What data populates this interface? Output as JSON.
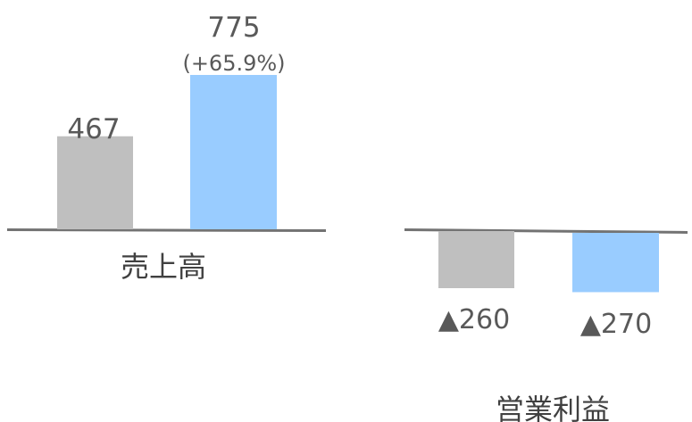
{
  "chart_data": [
    {
      "type": "bar",
      "category": "売上高",
      "series_colors": [
        "#bfbfbf",
        "#99ccff"
      ],
      "values": [
        467,
        775
      ],
      "value_labels": [
        "467",
        "775"
      ],
      "change_label": "(+65.9%)"
    },
    {
      "type": "bar",
      "category": "営業利益",
      "series_colors": [
        "#bfbfbf",
        "#99ccff"
      ],
      "values": [
        -260,
        -270
      ],
      "value_labels": [
        "▲260",
        "▲270"
      ]
    }
  ],
  "colors": {
    "axis": "#737373",
    "value_text": "#595959",
    "category_text": "#404040"
  }
}
